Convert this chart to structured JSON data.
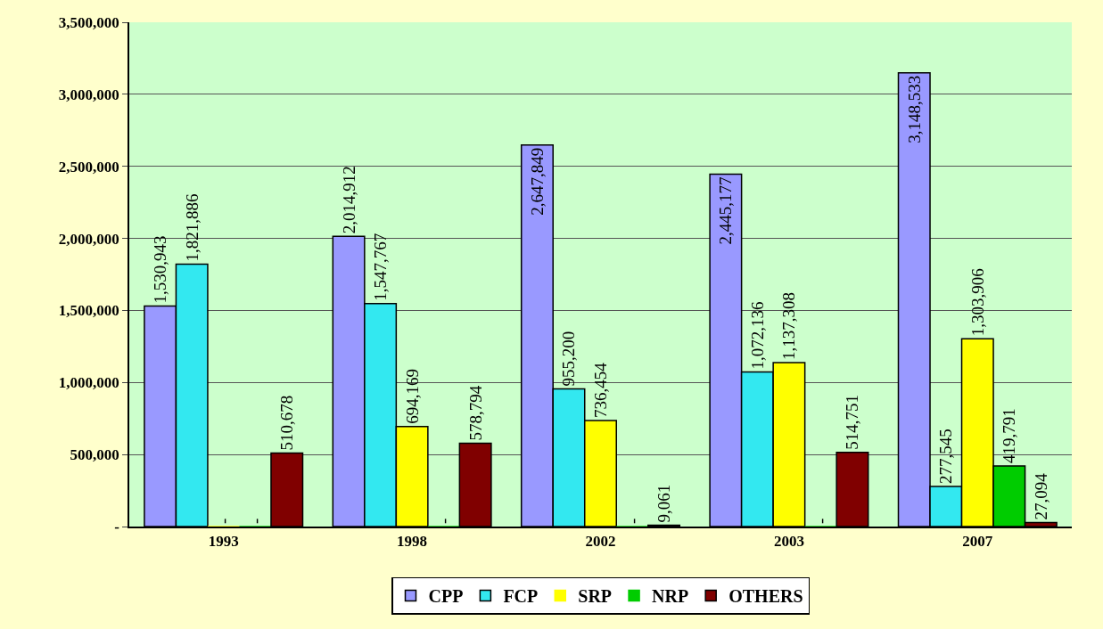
{
  "chart_data": {
    "type": "bar",
    "categories": [
      "1993",
      "1998",
      "2002",
      "2003",
      "2007"
    ],
    "series": [
      {
        "name": "CPP",
        "color": "#9999ff",
        "values": [
          1530943,
          2014912,
          2647849,
          2445177,
          3148533
        ],
        "value_labels": [
          "1,530,943",
          "2,014,912",
          "2,647,849",
          "2,445,177",
          "3,148,533"
        ]
      },
      {
        "name": "FCP",
        "color": "#33e8f0",
        "values": [
          1821886,
          1547767,
          955200,
          1072136,
          277545
        ],
        "value_labels": [
          "1,821,886",
          "1,547,767",
          "955,200",
          "1,072,136",
          "277,545"
        ]
      },
      {
        "name": "SRP",
        "color": "#ffff00",
        "values": [
          0,
          694169,
          736454,
          1137308,
          1303906
        ],
        "value_labels": [
          "-",
          "694,169",
          "736,454",
          "1,137,308",
          "1,303,906"
        ]
      },
      {
        "name": "NRP",
        "color": "#00cc00",
        "values": [
          0,
          0,
          0,
          0,
          419791
        ],
        "value_labels": [
          "-",
          "-",
          "-",
          "-",
          "419,791"
        ]
      },
      {
        "name": "OTHERS",
        "color": "#800000",
        "values": [
          510678,
          578794,
          9061,
          514751,
          27094
        ],
        "value_labels": [
          "510,678",
          "578,794",
          "9,061",
          "514,751",
          "27,094"
        ]
      }
    ],
    "ylim": [
      0,
      3500000
    ],
    "yticks": [
      {
        "value": 0,
        "label": "-"
      },
      {
        "value": 500000,
        "label": "500,000"
      },
      {
        "value": 1000000,
        "label": "1,000,000"
      },
      {
        "value": 1500000,
        "label": "1,500,000"
      },
      {
        "value": 2000000,
        "label": "2,000,000"
      },
      {
        "value": 2500000,
        "label": "2,500,000"
      },
      {
        "value": 3000000,
        "label": "3,000,000"
      },
      {
        "value": 3500000,
        "label": "3,500,000"
      }
    ],
    "grid": "y",
    "legend": "bottom"
  }
}
